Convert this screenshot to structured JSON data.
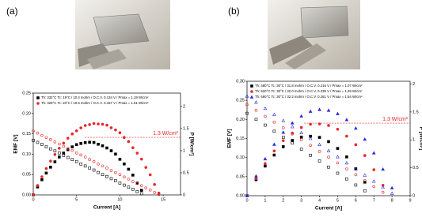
{
  "chart_data": [
    {
      "type": "scatter",
      "panel_label": "(a)",
      "x_label": "Current [A]",
      "y_label": "EMF [V]",
      "y2_label": "P [W/cm²]",
      "xlim": [
        0,
        17
      ],
      "xticks": [
        0,
        5,
        10,
        15
      ],
      "ylim": [
        0,
        0.25
      ],
      "yticks": [
        {
          "value": 0,
          "label": "0.00"
        },
        {
          "value": 0.05,
          "label": "0.05"
        },
        {
          "value": 0.1,
          "label": "0.10"
        },
        {
          "value": 0.15,
          "label": "0.15"
        },
        {
          "value": 0.2,
          "label": "0.20"
        },
        {
          "value": 0.25,
          "label": "0.25"
        }
      ],
      "y2lim": [
        0,
        2.3
      ],
      "y2ticks": [
        0,
        0.5,
        1,
        1.5,
        2
      ],
      "annotation": {
        "text": "1.3 W/cm²",
        "value": 1.3,
        "color": "#e8262a"
      },
      "series": [
        {
          "name": "Th: 332°C Tc: 19°C / 10.4 mohm / O.C.V. 0.134 V / Pmax = 1.19 W/cm²",
          "color": "#000000",
          "marker": "square",
          "filled": false,
          "x": [
            0,
            0.5,
            1,
            1.5,
            2,
            2.5,
            3,
            3.5,
            4,
            4.5,
            5,
            5.5,
            6,
            6.5,
            7,
            7.5,
            8,
            8.5,
            9,
            9.5,
            10,
            10.5,
            11,
            11.5,
            12,
            12.5
          ],
          "values": [
            0.134,
            0.129,
            0.124,
            0.118,
            0.113,
            0.108,
            0.103,
            0.097,
            0.092,
            0.087,
            0.082,
            0.076,
            0.071,
            0.066,
            0.061,
            0.055,
            0.05,
            0.045,
            0.04,
            0.035,
            0.029,
            0.024,
            0.019,
            0.014,
            0.008,
            0.003
          ]
        },
        {
          "color": "#000000",
          "marker": "square",
          "filled": true,
          "axis": "y2",
          "x": [
            0,
            0.5,
            1,
            1.5,
            2,
            2.5,
            3,
            3.5,
            4,
            4.5,
            5,
            5.5,
            6,
            6.5,
            7,
            7.5,
            8,
            8.5,
            9,
            9.5,
            10,
            10.5,
            11,
            11.5,
            12,
            12.5
          ],
          "values": [
            0,
            0.179,
            0.343,
            0.493,
            0.627,
            0.748,
            0.856,
            0.945,
            1.023,
            1.086,
            1.136,
            1.162,
            1.182,
            1.19,
            1.185,
            1.145,
            1.11,
            1.061,
            0.998,
            0.922,
            0.805,
            0.699,
            0.58,
            0.447,
            0.266,
            0.104
          ]
        },
        {
          "name": "Th: 329°C Tc: 20°C / 10.6 mohm / O.C.V. 0.157 V / Pmax = 1.61 W/cm²",
          "color": "#e8262a",
          "marker": "circle",
          "filled": false,
          "x": [
            0,
            0.5,
            1,
            1.5,
            2,
            2.5,
            3,
            3.5,
            4,
            4.5,
            5,
            5.5,
            6,
            6.5,
            7,
            7.5,
            8,
            8.5,
            9,
            9.5,
            10,
            10.5,
            11,
            11.5,
            12,
            12.5,
            13,
            13.5,
            14,
            14.5
          ],
          "values": [
            0.157,
            0.152,
            0.146,
            0.141,
            0.136,
            0.13,
            0.125,
            0.119,
            0.114,
            0.109,
            0.103,
            0.098,
            0.093,
            0.087,
            0.082,
            0.076,
            0.071,
            0.066,
            0.06,
            0.055,
            0.05,
            0.044,
            0.039,
            0.033,
            0.028,
            0.023,
            0.017,
            0.012,
            0.006,
            0.001
          ]
        },
        {
          "color": "#e8262a",
          "marker": "circle",
          "filled": true,
          "axis": "y2",
          "x": [
            0,
            0.5,
            1,
            1.5,
            2,
            2.5,
            3,
            3.5,
            4,
            4.5,
            5,
            5.5,
            6,
            6.5,
            7,
            7.5,
            8,
            8.5,
            9,
            9.5,
            10,
            10.5,
            11,
            11.5,
            12,
            12.5,
            13,
            13.5,
            14,
            14.5
          ],
          "values": [
            0,
            0.214,
            0.41,
            0.594,
            0.764,
            0.913,
            1.054,
            1.17,
            1.281,
            1.378,
            1.447,
            1.515,
            1.568,
            1.589,
            1.613,
            1.602,
            1.596,
            1.576,
            1.517,
            1.468,
            1.405,
            1.298,
            1.206,
            1.066,
            0.944,
            0.808,
            0.621,
            0.455,
            0.236,
            0.041
          ]
        }
      ]
    },
    {
      "type": "scatter",
      "panel_label": "(b)",
      "x_label": "Current [A]",
      "y_label": "EMF [V]",
      "y2_label": "P [W/cm²]",
      "xlim": [
        0,
        9
      ],
      "xticks": [
        0,
        1,
        2,
        3,
        4,
        5,
        6,
        7,
        8,
        9
      ],
      "ylim": [
        0,
        0.3
      ],
      "yticks": [
        {
          "value": 0,
          "label": "0.00"
        },
        {
          "value": 0.05,
          "label": "0.05"
        },
        {
          "value": 0.1,
          "label": "0.10"
        },
        {
          "value": 0.15,
          "label": "0.15"
        },
        {
          "value": 0.2,
          "label": "0.20"
        },
        {
          "value": 0.25,
          "label": "0.25"
        },
        {
          "value": 0.3,
          "label": "0.30"
        }
      ],
      "y2lim": [
        0,
        2.05
      ],
      "y2ticks": [
        0,
        0.5,
        1,
        1.5,
        2
      ],
      "annotation": {
        "text": "1.3 W/cm²",
        "value": 1.3,
        "color": "#e8262a"
      },
      "series": [
        {
          "name": "Th: 480°C Tc: 30°C / 31.8 mohm / O.C.V. 0.216 V / Pmax = 1.07 W/cm²",
          "color": "#000000",
          "marker": "square",
          "filled": false,
          "x": [
            0,
            0.5,
            1,
            1.5,
            2,
            2.5,
            3,
            3.5,
            4,
            4.5,
            5,
            5.5,
            6,
            6.5
          ],
          "values": [
            0.216,
            0.2,
            0.185,
            0.169,
            0.153,
            0.138,
            0.122,
            0.106,
            0.091,
            0.075,
            0.059,
            0.044,
            0.028,
            0.013
          ]
        },
        {
          "color": "#000000",
          "marker": "square",
          "filled": true,
          "axis": "y2",
          "x": [
            0,
            0.5,
            1,
            1.5,
            2,
            2.5,
            3,
            3.5,
            4,
            4.5,
            5,
            5.5,
            6,
            6.5
          ],
          "values": [
            0,
            0.287,
            0.531,
            0.728,
            0.878,
            0.99,
            1.05,
            1.065,
            1.045,
            0.969,
            0.847,
            0.695,
            0.482,
            0.243
          ]
        },
        {
          "name": "Th: 520°C Tc: 30°C / 32.0 mohm / O.C.V. 0.239 V / Pmax = 1.29 W/cm²",
          "color": "#e8262a",
          "marker": "circle",
          "filled": false,
          "x": [
            0,
            0.5,
            1,
            1.5,
            2,
            2.5,
            3,
            3.5,
            4,
            4.5,
            5,
            5.5,
            6,
            6.5,
            7,
            7.5
          ],
          "values": [
            0.239,
            0.224,
            0.208,
            0.193,
            0.178,
            0.162,
            0.147,
            0.132,
            0.116,
            0.101,
            0.086,
            0.07,
            0.055,
            0.04,
            0.024,
            0.009
          ]
        },
        {
          "color": "#e8262a",
          "marker": "circle",
          "filled": true,
          "axis": "y2",
          "x": [
            0,
            0.5,
            1,
            1.5,
            2,
            2.5,
            3,
            3.5,
            4,
            4.5,
            5,
            5.5,
            6,
            6.5,
            7,
            7.5
          ],
          "values": [
            0,
            0.31,
            0.576,
            0.802,
            0.986,
            1.122,
            1.222,
            1.28,
            1.285,
            1.259,
            1.191,
            1.066,
            0.914,
            0.72,
            0.465,
            0.187
          ]
        },
        {
          "name": "Th: 560°C Tc: 30°C / 32.2 mohm / O.C.V. 0.261 V / Pmax = 1.54 W/cm²",
          "color": "#2a2ae0",
          "marker": "triangle",
          "filled": false,
          "x": [
            0,
            0.5,
            1,
            1.5,
            2,
            2.5,
            3,
            3.5,
            4,
            4.5,
            5,
            5.5,
            6,
            6.5,
            7,
            7.5,
            8
          ],
          "values": [
            0.261,
            0.245,
            0.229,
            0.213,
            0.197,
            0.181,
            0.165,
            0.15,
            0.134,
            0.118,
            0.102,
            0.086,
            0.07,
            0.054,
            0.038,
            0.022,
            0.006
          ]
        },
        {
          "color": "#2a2ae0",
          "marker": "triangle",
          "filled": true,
          "axis": "y2",
          "x": [
            0,
            0.5,
            1,
            1.5,
            2,
            2.5,
            3,
            3.5,
            4,
            4.5,
            5,
            5.5,
            6,
            6.5,
            7,
            7.5,
            8
          ],
          "values": [
            0,
            0.353,
            0.66,
            0.92,
            1.135,
            1.303,
            1.426,
            1.512,
            1.544,
            1.529,
            1.469,
            1.362,
            1.21,
            1.011,
            0.766,
            0.475,
            0.138
          ]
        }
      ]
    }
  ]
}
